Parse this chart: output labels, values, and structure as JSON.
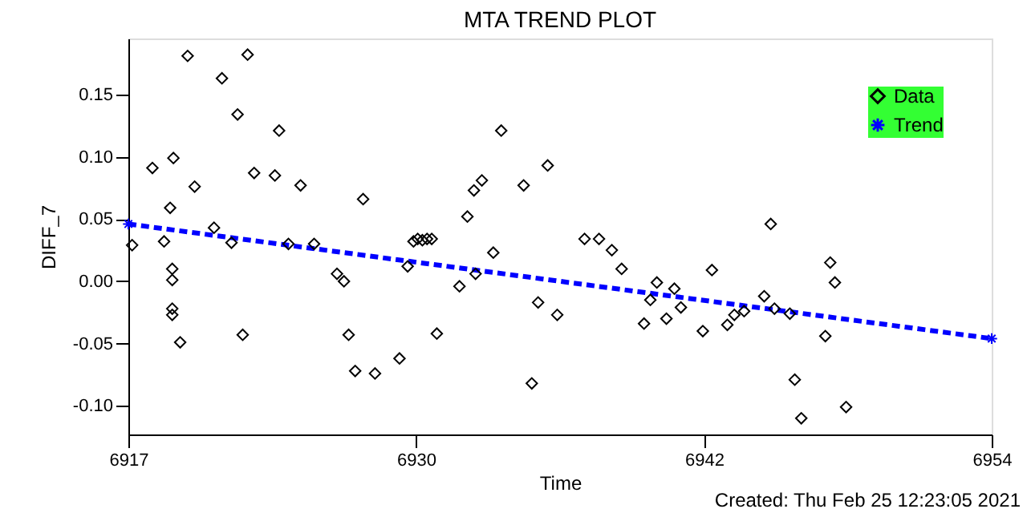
{
  "chart_data": {
    "type": "scatter",
    "title": "MTA TREND PLOT",
    "xlabel": "Time",
    "ylabel": "DIFF_7",
    "annotations": [
      "Created: Thu Feb 25 12:23:05 2021"
    ],
    "xlim": [
      6917.4,
      6954.4
    ],
    "xticks": [
      {
        "value": 6917.4,
        "label": "6917"
      },
      {
        "value": 6929.73,
        "label": "6930"
      },
      {
        "value": 6942.07,
        "label": "6942"
      },
      {
        "value": 6954.4,
        "label": "6954"
      }
    ],
    "ylim": [
      -0.123,
      0.195
    ],
    "yticks": [
      {
        "value": -0.1,
        "label": "-0.10"
      },
      {
        "value": -0.05,
        "label": "-0.05"
      },
      {
        "value": 0,
        "label": "0.00"
      },
      {
        "value": 0.05,
        "label": "0.05"
      },
      {
        "value": 0.1,
        "label": "0.10"
      },
      {
        "value": 0.15,
        "label": "0.15"
      }
    ],
    "grid": false,
    "legend": "top right",
    "series": [
      {
        "name": "Data",
        "color": "#000000",
        "marker": "diamond",
        "x": [
          6917.56,
          6918.43,
          6919.33,
          6919.19,
          6918.93,
          6919.28,
          6919.28,
          6919.28,
          6919.28,
          6919.62,
          6919.94,
          6920.24,
          6921.07,
          6921.41,
          6921.82,
          6922.08,
          6922.3,
          6922.51,
          6922.79,
          6923.68,
          6923.86,
          6924.26,
          6924.78,
          6925.36,
          6926.34,
          6926.64,
          6926.84,
          6927.12,
          6927.46,
          6927.97,
          6929.02,
          6929.37,
          6929.62,
          6929.8,
          6930.0,
          6930.2,
          6930.4,
          6930.62,
          6931.59,
          6931.93,
          6932.21,
          6932.55,
          6932.28,
          6933.04,
          6933.38,
          6934.34,
          6934.69,
          6934.96,
          6935.37,
          6935.78,
          6936.95,
          6937.57,
          6938.12,
          6938.54,
          6939.5,
          6939.77,
          6940.05,
          6940.46,
          6940.8,
          6941.08,
          6942.02,
          6942.41,
          6943.07,
          6943.37,
          6943.79,
          6944.65,
          6944.93,
          6945.09,
          6945.75,
          6945.96,
          6946.24,
          6947.27,
          6947.48,
          6947.68,
          6948.16
        ],
        "values": [
          0.029,
          0.091,
          0.099,
          0.059,
          0.032,
          0.01,
          0.001,
          -0.022,
          -0.027,
          -0.049,
          0.181,
          0.076,
          0.043,
          0.163,
          0.031,
          0.134,
          -0.043,
          0.182,
          0.087,
          0.085,
          0.121,
          0.03,
          0.077,
          0.03,
          0.006,
          0.0,
          -0.043,
          -0.072,
          0.066,
          -0.074,
          -0.062,
          0.012,
          0.032,
          0.034,
          0.033,
          0.034,
          0.034,
          -0.042,
          -0.004,
          0.052,
          0.073,
          0.081,
          0.006,
          0.023,
          0.121,
          0.077,
          -0.082,
          -0.017,
          0.093,
          -0.027,
          0.034,
          0.034,
          0.025,
          0.01,
          -0.034,
          -0.015,
          -0.001,
          -0.03,
          -0.006,
          -0.021,
          -0.04,
          0.009,
          -0.035,
          -0.027,
          -0.024,
          -0.012,
          0.046,
          -0.022,
          -0.026,
          -0.079,
          -0.11,
          -0.044,
          0.015,
          -0.001,
          -0.101
        ]
      },
      {
        "name": "Trend",
        "type": "line",
        "color": "#0000ff",
        "marker": "cross",
        "line_style": "dashed",
        "x": [
          6917.4,
          6954.4
        ],
        "values": [
          0.046,
          -0.046
        ]
      }
    ]
  }
}
